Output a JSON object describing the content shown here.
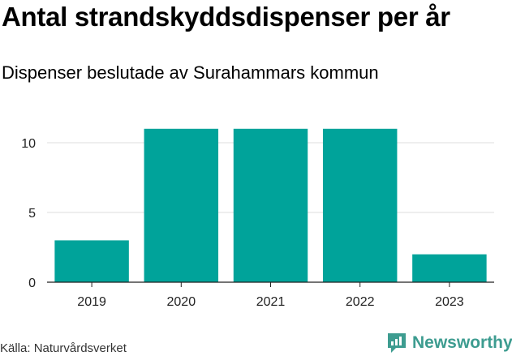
{
  "title": "Antal strandskyddsdispenser per år",
  "subtitle": "Dispenser beslutade av Surahammars kommun",
  "source": "Källa: Naturvårdsverket",
  "brand": "Newsworthy",
  "colors": {
    "bar": "#00a39a",
    "grid": "#dddddd",
    "axis": "#222222",
    "brand": "#3d9c90"
  },
  "chart_data": {
    "type": "bar",
    "categories": [
      "2019",
      "2020",
      "2021",
      "2022",
      "2023"
    ],
    "values": [
      3,
      11,
      11,
      11,
      2
    ],
    "yticks": [
      0,
      5,
      10
    ],
    "ylim": [
      0,
      11
    ],
    "grid": true,
    "legend": "none"
  }
}
